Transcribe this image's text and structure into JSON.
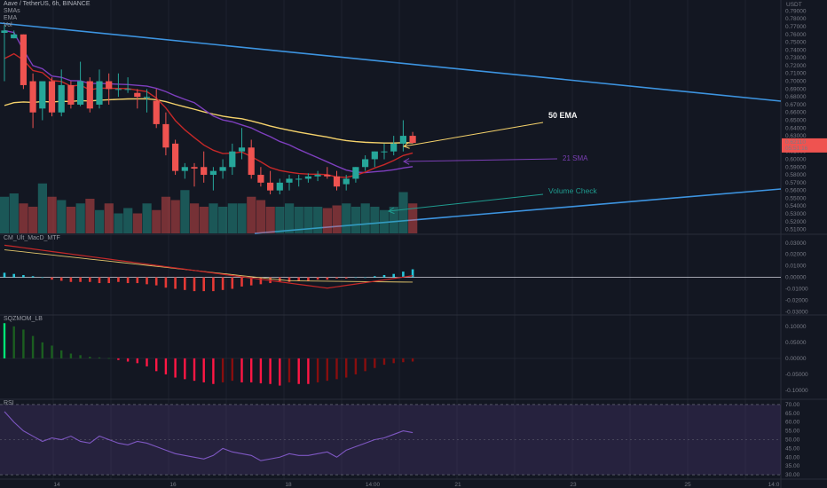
{
  "header": {
    "symbol_line": "Aave / TetherUS, 6h, BINANCE",
    "indicators": [
      "SMAs",
      "EMA",
      "Vol"
    ]
  },
  "price_axis": {
    "currency": "USDT",
    "ticks": [
      "0.79000",
      "0.78000",
      "0.77000",
      "0.76000",
      "0.75000",
      "0.74000",
      "0.73000",
      "0.72000",
      "0.71000",
      "0.70000",
      "0.69000",
      "0.68000",
      "0.67000",
      "0.66000",
      "0.65000",
      "0.64000",
      "0.63000",
      "0.62000",
      "0.61000",
      "0.60000",
      "0.59000",
      "0.58000",
      "0.57000",
      "0.56000",
      "0.55000",
      "0.54000",
      "0.53000",
      "0.52000",
      "0.51000"
    ],
    "last_price": "0.62110",
    "last_price_countdown": "05:51:16"
  },
  "annotations": {
    "ema50": "50 EMA",
    "sma21": "21 SMA",
    "volume": "Volume Check"
  },
  "panes": {
    "macd": {
      "title": "CM_Ult_MacD_MTF",
      "ticks": [
        "0.03000",
        "0.02000",
        "0.01000",
        "0.00000",
        "-0.01000",
        "-0.02000",
        "-0.03000"
      ]
    },
    "sqz": {
      "title": "SQZMOM_LB",
      "ticks": [
        "0.10000",
        "0.05000",
        "0.00000",
        "-0.05000",
        "-0.10000"
      ]
    },
    "rsi": {
      "title": "RSI",
      "ticks": [
        "70.00",
        "65.00",
        "60.00",
        "55.00",
        "50.00",
        "45.00",
        "40.00",
        "35.00",
        "30.00"
      ]
    }
  },
  "time_axis": {
    "ticks": [
      "14",
      "16",
      "18",
      "14:00",
      "21",
      "23",
      "25",
      "14:0"
    ]
  },
  "chart_data": {
    "type": "candlestick",
    "price_range": [
      0.505,
      0.795
    ],
    "candles": [
      [
        0.762,
        0.772,
        0.7,
        0.765
      ],
      [
        0.755,
        0.765,
        0.755,
        0.76
      ],
      [
        0.76,
        0.76,
        0.69,
        0.695
      ],
      [
        0.7,
        0.71,
        0.64,
        0.66
      ],
      [
        0.665,
        0.7,
        0.65,
        0.7
      ],
      [
        0.7,
        0.705,
        0.655,
        0.66
      ],
      [
        0.66,
        0.715,
        0.655,
        0.695
      ],
      [
        0.695,
        0.7,
        0.665,
        0.67
      ],
      [
        0.67,
        0.725,
        0.668,
        0.7
      ],
      [
        0.7,
        0.705,
        0.66,
        0.665
      ],
      [
        0.67,
        0.715,
        0.665,
        0.7
      ],
      [
        0.7,
        0.71,
        0.67,
        0.69
      ],
      [
        0.69,
        0.71,
        0.68,
        0.69
      ],
      [
        0.69,
        0.705,
        0.685,
        0.69
      ],
      [
        0.685,
        0.69,
        0.665,
        0.68
      ],
      [
        0.68,
        0.69,
        0.66,
        0.68
      ],
      [
        0.675,
        0.69,
        0.64,
        0.645
      ],
      [
        0.645,
        0.66,
        0.605,
        0.615
      ],
      [
        0.62,
        0.625,
        0.58,
        0.585
      ],
      [
        0.585,
        0.595,
        0.575,
        0.59
      ],
      [
        0.59,
        0.595,
        0.565,
        0.588
      ],
      [
        0.59,
        0.61,
        0.57,
        0.58
      ],
      [
        0.58,
        0.59,
        0.56,
        0.585
      ],
      [
        0.585,
        0.6,
        0.575,
        0.59
      ],
      [
        0.59,
        0.62,
        0.58,
        0.61
      ],
      [
        0.61,
        0.64,
        0.6,
        0.615
      ],
      [
        0.615,
        0.625,
        0.575,
        0.58
      ],
      [
        0.58,
        0.59,
        0.565,
        0.57
      ],
      [
        0.57,
        0.585,
        0.555,
        0.56
      ],
      [
        0.56,
        0.575,
        0.555,
        0.57
      ],
      [
        0.57,
        0.58,
        0.56,
        0.575
      ],
      [
        0.575,
        0.58,
        0.565,
        0.575
      ],
      [
        0.575,
        0.582,
        0.57,
        0.578
      ],
      [
        0.578,
        0.585,
        0.572,
        0.58
      ],
      [
        0.58,
        0.59,
        0.575,
        0.578
      ],
      [
        0.578,
        0.585,
        0.56,
        0.565
      ],
      [
        0.568,
        0.58,
        0.56,
        0.575
      ],
      [
        0.575,
        0.59,
        0.57,
        0.59
      ],
      [
        0.59,
        0.605,
        0.585,
        0.6
      ],
      [
        0.6,
        0.61,
        0.59,
        0.61
      ],
      [
        0.61,
        0.62,
        0.6,
        0.61
      ],
      [
        0.61,
        0.63,
        0.605,
        0.62
      ],
      [
        0.62,
        0.65,
        0.61,
        0.63
      ],
      [
        0.63,
        0.635,
        0.62,
        0.621
      ]
    ],
    "volume": [
      0.55,
      0.6,
      0.45,
      0.4,
      0.75,
      0.55,
      0.5,
      0.4,
      0.45,
      0.52,
      0.35,
      0.45,
      0.3,
      0.38,
      0.3,
      0.45,
      0.35,
      0.55,
      0.5,
      0.65,
      0.45,
      0.4,
      0.45,
      0.4,
      0.45,
      0.45,
      0.55,
      0.5,
      0.4,
      0.4,
      0.45,
      0.4,
      0.4,
      0.4,
      0.38,
      0.42,
      0.45,
      0.4,
      0.45,
      0.4,
      0.35,
      0.4,
      0.62,
      0.45
    ],
    "macd_hist": [
      0.004,
      0.003,
      0.002,
      0.001,
      0,
      -0.002,
      -0.003,
      -0.004,
      -0.004,
      -0.004,
      -0.005,
      -0.005,
      -0.004,
      -0.005,
      -0.005,
      -0.006,
      -0.007,
      -0.009,
      -0.01,
      -0.011,
      -0.012,
      -0.012,
      -0.012,
      -0.011,
      -0.01,
      -0.008,
      -0.007,
      -0.006,
      -0.005,
      -0.004,
      -0.004,
      -0.003,
      -0.003,
      -0.002,
      -0.002,
      -0.001,
      -0.001,
      0,
      0,
      0.001,
      0.002,
      0.003,
      0.005,
      0.007
    ],
    "sqz_hist": [
      0.11,
      0.1,
      0.09,
      0.07,
      0.05,
      0.04,
      0.025,
      0.015,
      0.01,
      0.005,
      0.003,
      0.001,
      -0.005,
      -0.01,
      -0.015,
      -0.025,
      -0.04,
      -0.05,
      -0.06,
      -0.065,
      -0.07,
      -0.075,
      -0.08,
      -0.075,
      -0.07,
      -0.075,
      -0.075,
      -0.078,
      -0.08,
      -0.085,
      -0.075,
      -0.08,
      -0.08,
      -0.075,
      -0.07,
      -0.065,
      -0.06,
      -0.05,
      -0.04,
      -0.03,
      -0.02,
      -0.015,
      -0.012,
      -0.01
    ],
    "rsi": [
      66,
      60,
      55,
      52,
      49,
      51,
      50,
      52,
      49,
      48,
      52,
      50,
      48,
      47,
      49,
      48,
      46,
      44,
      42,
      41,
      40,
      39,
      41,
      45,
      43,
      42,
      41,
      38,
      39,
      40,
      42,
      41,
      41,
      42,
      43,
      40,
      44,
      46,
      48,
      50,
      51,
      53,
      55,
      54
    ]
  }
}
